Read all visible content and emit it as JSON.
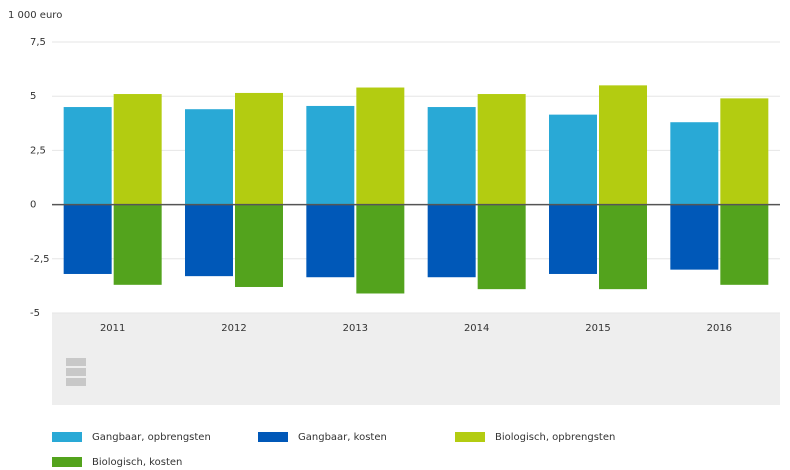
{
  "chart_data": {
    "type": "bar",
    "y_label": "1 000 euro",
    "categories": [
      "2011",
      "2012",
      "2013",
      "2014",
      "2015",
      "2016"
    ],
    "series": [
      {
        "name": "Gangbaar, opbrengsten",
        "color": "#29a9d6",
        "values": [
          4.5,
          4.4,
          4.55,
          4.5,
          4.15,
          3.8
        ]
      },
      {
        "name": "Gangbaar, kosten",
        "color": "#0058b8",
        "values": [
          -3.2,
          -3.3,
          -3.35,
          -3.35,
          -3.2,
          -3.0
        ]
      },
      {
        "name": "Biologisch, opbrengsten",
        "color": "#b3cc11",
        "values": [
          5.1,
          5.15,
          5.4,
          5.1,
          5.5,
          4.9
        ]
      },
      {
        "name": "Biologisch, kosten",
        "color": "#53a31d",
        "values": [
          -3.7,
          -3.8,
          -4.1,
          -3.9,
          -3.9,
          -3.7
        ]
      }
    ],
    "ylim": [
      -5,
      7.5
    ],
    "yticks": [
      -5,
      {
        "value": -2.5,
        "label": "-2,5"
      },
      0,
      {
        "value": 2.5,
        "label": "2,5"
      },
      5,
      {
        "value": 7.5,
        "label": "7,5"
      }
    ],
    "grid": true
  }
}
